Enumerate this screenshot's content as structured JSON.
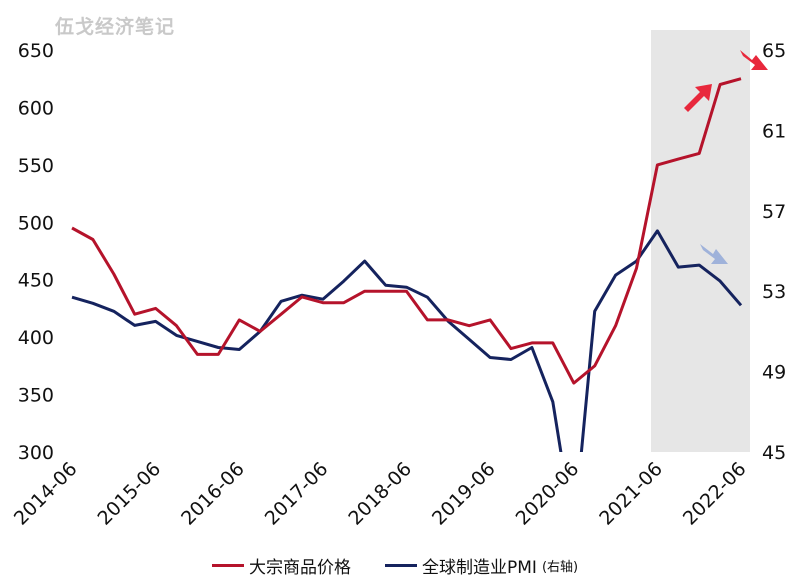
{
  "watermark": "伍戈经济笔记",
  "chart_data": {
    "type": "line",
    "title": "",
    "x": [
      "2014-06",
      "2014-09",
      "2014-12",
      "2015-03",
      "2015-06",
      "2015-09",
      "2015-12",
      "2016-03",
      "2016-06",
      "2016-09",
      "2016-12",
      "2017-03",
      "2017-06",
      "2017-09",
      "2017-12",
      "2018-03",
      "2018-06",
      "2018-09",
      "2018-12",
      "2019-03",
      "2019-06",
      "2019-09",
      "2019-12",
      "2020-03",
      "2020-06",
      "2020-09",
      "2020-12",
      "2021-03",
      "2021-06",
      "2021-09",
      "2021-12",
      "2022-03",
      "2022-06"
    ],
    "x_tick_labels": [
      "2014-06",
      "2015-06",
      "2016-06",
      "2017-06",
      "2018-06",
      "2019-06",
      "2020-06",
      "2021-06",
      "2022-06"
    ],
    "series": [
      {
        "name": "大宗商品价格",
        "axis": "left",
        "color": "#b5132b",
        "values": [
          495,
          485,
          455,
          420,
          425,
          410,
          385,
          385,
          415,
          405,
          420,
          435,
          430,
          430,
          440,
          440,
          440,
          415,
          415,
          410,
          415,
          390,
          395,
          395,
          360,
          375,
          410,
          460,
          550,
          555,
          560,
          620,
          625
        ]
      },
      {
        "name": "全球制造业PMI",
        "axis_note": "(右轴)",
        "axis": "right",
        "color": "#15235e",
        "values": [
          52.7,
          52.4,
          52.0,
          51.3,
          51.5,
          50.8,
          50.5,
          50.2,
          50.1,
          51.0,
          52.5,
          52.8,
          52.6,
          53.5,
          54.5,
          53.3,
          53.2,
          52.7,
          51.5,
          50.6,
          49.7,
          49.6,
          50.2,
          47.5,
          41.0,
          52.0,
          53.8,
          54.5,
          56.0,
          54.2,
          54.3,
          53.5,
          52.3
        ]
      }
    ],
    "left_axis": {
      "ylim": [
        300,
        650
      ],
      "ticks": [
        650,
        600,
        550,
        500,
        450,
        400,
        350,
        300
      ]
    },
    "right_axis": {
      "ylim": [
        45,
        65
      ],
      "ticks": [
        65,
        61,
        57,
        53,
        49,
        45
      ]
    },
    "shaded_region": [
      "2021-06",
      "2022-06"
    ],
    "legend_position": "bottom",
    "grid": false
  }
}
